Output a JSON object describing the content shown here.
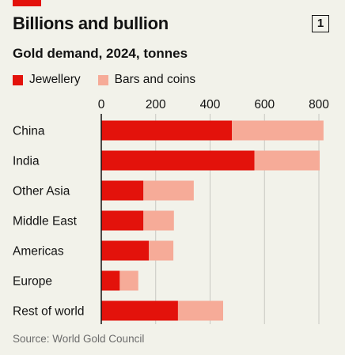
{
  "header": {
    "title": "Billions and bullion",
    "badge": "1",
    "subtitle": "Gold demand, 2024, tonnes"
  },
  "source": "Source: World Gold Council",
  "colors": {
    "jewellery": "#e3120b",
    "bars_and_coins": "#f6ab98",
    "axis": "#121212",
    "grid": "#c8c8c2"
  },
  "chart_data": {
    "type": "bar",
    "orientation": "horizontal",
    "stacked": true,
    "title": "Billions and bullion",
    "subtitle": "Gold demand, 2024, tonnes",
    "categories": [
      "China",
      "India",
      "Other Asia",
      "Middle East",
      "Americas",
      "Europe",
      "Rest of world"
    ],
    "series": [
      {
        "name": "Jewellery",
        "values": [
          480,
          563,
          155,
          155,
          175,
          68,
          282
        ]
      },
      {
        "name": "Bars and coins",
        "values": [
          337,
          240,
          185,
          112,
          90,
          68,
          166
        ]
      }
    ],
    "xlim": [
      0,
      800
    ],
    "xticks": [
      0,
      200,
      400,
      600,
      800
    ],
    "xtick_labels": [
      "0",
      "200",
      "400",
      "600",
      "800"
    ],
    "legend_position": "top-left",
    "grid": true
  }
}
